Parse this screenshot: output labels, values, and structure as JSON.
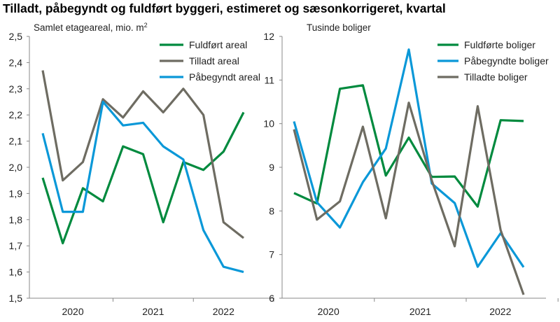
{
  "title": "Tilladt, påbegyndt og fuldført byggeri, estimeret og sæsonkorrigeret, kvartal",
  "chart_data": [
    {
      "type": "line",
      "ylabel": "Samlet etageareal, mio. m",
      "ylabel_sup": "2",
      "ylim": [
        1.5,
        2.5
      ],
      "yticks": [
        "1,5",
        "1,6",
        "1,7",
        "1,8",
        "1,9",
        "2,0",
        "2,1",
        "2,2",
        "2,3",
        "2,4",
        "2,5"
      ],
      "x_groups": [
        "2020",
        "2021",
        "2022"
      ],
      "x": [
        "2020K1",
        "2020K2",
        "2020K3",
        "2020K4",
        "2021K1",
        "2021K2",
        "2021K3",
        "2021K4",
        "2022K1",
        "2022K2",
        "2022K3"
      ],
      "legend": "top-right",
      "series": [
        {
          "name": "Fuldført areal",
          "color": "#008a3e",
          "values": [
            1.96,
            1.71,
            1.92,
            1.87,
            2.08,
            2.05,
            1.79,
            2.02,
            1.99,
            2.06,
            2.21
          ]
        },
        {
          "name": "Tilladt areal",
          "color": "#6e6c62",
          "values": [
            2.37,
            1.95,
            2.02,
            2.26,
            2.19,
            2.29,
            2.21,
            2.3,
            2.2,
            1.79,
            1.73
          ]
        },
        {
          "name": "Påbegyndt areal",
          "color": "#0a98d8",
          "values": [
            2.13,
            1.83,
            1.83,
            2.25,
            2.16,
            2.17,
            2.08,
            2.03,
            1.76,
            1.62,
            1.6
          ]
        }
      ]
    },
    {
      "type": "line",
      "ylabel": "Tusinde boliger",
      "ylim": [
        6,
        12
      ],
      "yticks": [
        "6",
        "7",
        "8",
        "9",
        "10",
        "11",
        "12"
      ],
      "x_groups": [
        "2020",
        "2021",
        "2022"
      ],
      "x": [
        "2020K1",
        "2020K2",
        "2020K3",
        "2020K4",
        "2021K1",
        "2021K2",
        "2021K3",
        "2021K4",
        "2022K1",
        "2022K2",
        "2022K3"
      ],
      "legend": "top-right",
      "series": [
        {
          "name": "Fuldførte boliger",
          "color": "#008a3e",
          "values": [
            8.41,
            8.17,
            10.8,
            10.88,
            8.81,
            9.68,
            8.78,
            8.79,
            8.1,
            10.08,
            10.06
          ]
        },
        {
          "name": "Påbegyndte boliger",
          "color": "#0a98d8",
          "values": [
            10.05,
            8.2,
            7.62,
            8.66,
            9.43,
            11.7,
            8.63,
            8.18,
            6.72,
            7.49,
            6.71
          ]
        },
        {
          "name": "Tilladte boliger",
          "color": "#6e6c62",
          "values": [
            9.87,
            7.8,
            8.22,
            9.93,
            7.83,
            10.48,
            8.7,
            7.19,
            10.4,
            7.56,
            6.08
          ]
        }
      ]
    }
  ]
}
